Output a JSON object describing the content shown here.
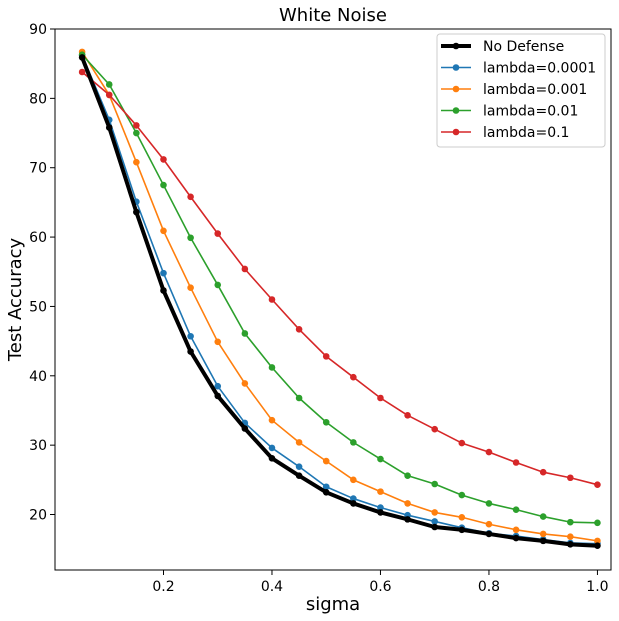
{
  "chart_data": {
    "type": "line",
    "title": "White Noise",
    "xlabel": "sigma",
    "ylabel": "Test Accuracy",
    "xlim": [
      0.0,
      1.025
    ],
    "ylim": [
      12,
      90
    ],
    "xticks": [
      0.2,
      0.4,
      0.6,
      0.8,
      1.0
    ],
    "xtick_labels": [
      "0.2",
      "0.4",
      "0.6",
      "0.8",
      "1.0"
    ],
    "yticks": [
      20,
      30,
      40,
      50,
      60,
      70,
      80,
      90
    ],
    "ytick_labels": [
      "20",
      "30",
      "40",
      "50",
      "60",
      "70",
      "80",
      "90"
    ],
    "grid": false,
    "legend_position": "top-right",
    "x": [
      0.05,
      0.1,
      0.15,
      0.2,
      0.25,
      0.3,
      0.35,
      0.4,
      0.45,
      0.5,
      0.55,
      0.6,
      0.65,
      0.7,
      0.75,
      0.8,
      0.85,
      0.9,
      0.95,
      1.0
    ],
    "series": [
      {
        "name": "No Defense",
        "color": "#000000",
        "values": [
          85.9,
          75.8,
          63.6,
          52.3,
          43.5,
          37.1,
          32.4,
          28.1,
          25.6,
          23.2,
          21.6,
          20.3,
          19.3,
          18.2,
          17.8,
          17.2,
          16.6,
          16.2,
          15.7,
          15.5
        ]
      },
      {
        "name": "lambda=0.0001",
        "color": "#1f77b4",
        "values": [
          86.2,
          76.9,
          65.1,
          54.8,
          45.7,
          38.5,
          33.2,
          29.6,
          26.9,
          24.0,
          22.3,
          21.0,
          19.9,
          19.0,
          18.1,
          17.3,
          16.9,
          16.4,
          15.9,
          15.8
        ]
      },
      {
        "name": "lambda=0.001",
        "color": "#ff7f0e",
        "values": [
          86.7,
          80.5,
          70.8,
          60.9,
          52.7,
          44.9,
          38.9,
          33.6,
          30.4,
          27.7,
          25.0,
          23.3,
          21.6,
          20.3,
          19.6,
          18.6,
          17.8,
          17.2,
          16.8,
          16.2
        ]
      },
      {
        "name": "lambda=0.01",
        "color": "#2ca02c",
        "values": [
          86.3,
          82.0,
          75.0,
          67.5,
          59.9,
          53.1,
          46.1,
          41.2,
          36.8,
          33.3,
          30.4,
          28.0,
          25.6,
          24.4,
          22.8,
          21.6,
          20.7,
          19.7,
          18.9,
          18.8
        ]
      },
      {
        "name": "lambda=0.1",
        "color": "#d62728",
        "values": [
          83.8,
          80.5,
          76.1,
          71.2,
          65.8,
          60.5,
          55.4,
          51.0,
          46.7,
          42.8,
          39.8,
          36.8,
          34.3,
          32.3,
          30.3,
          29.0,
          27.5,
          26.1,
          25.3,
          24.3
        ]
      }
    ]
  }
}
